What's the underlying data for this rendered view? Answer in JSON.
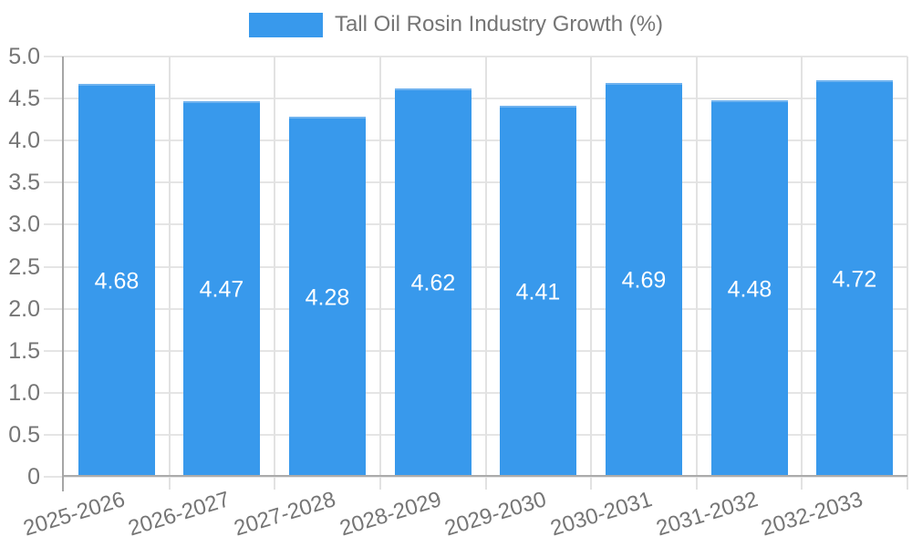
{
  "chart_data": {
    "type": "bar",
    "title": "Tall Oil Rosin Industry Growth (%)",
    "xlabel": "",
    "ylabel": "",
    "categories": [
      "2025-2026",
      "2026-2027",
      "2027-2028",
      "2028-2029",
      "2029-2030",
      "2030-2031",
      "2031-2032",
      "2032-2033"
    ],
    "values": [
      4.68,
      4.47,
      4.28,
      4.62,
      4.41,
      4.69,
      4.48,
      4.72
    ],
    "value_labels": [
      "4.68",
      "4.47",
      "4.28",
      "4.62",
      "4.41",
      "4.69",
      "4.48",
      "4.72"
    ],
    "ylim": [
      0,
      5
    ],
    "ytick_step": 0.5,
    "yticks": [
      "0",
      "0.5",
      "1.0",
      "1.5",
      "2.0",
      "2.5",
      "3.0",
      "3.5",
      "4.0",
      "4.5",
      "5.0"
    ],
    "grid": true,
    "legend_position": "top",
    "colors": {
      "bar": "#3899EC",
      "bar_top_edge": "#70B3EF",
      "bar_label": "#FFFFFF",
      "grid": "#E5E5E5",
      "grid_vertical": "#E2E2E2",
      "axis": "#A6A6A6",
      "baseline": "#ABABAB",
      "tick_text": "#757575",
      "legend_text": "#757575",
      "background": "#FFFFFF"
    }
  }
}
